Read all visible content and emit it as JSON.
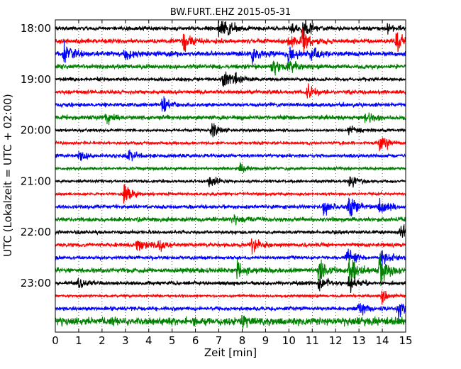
{
  "chart_data": {
    "type": "line",
    "title": "BW.FURT..EHZ 2015-05-31",
    "xlabel": "Zeit  [min]",
    "ylabel": "UTC (Lokalzeit = UTC + 02:00)",
    "xlim": [
      0,
      15
    ],
    "x_ticks": [
      "0",
      "1",
      "2",
      "3",
      "4",
      "5",
      "6",
      "7",
      "8",
      "9",
      "10",
      "11",
      "12",
      "13",
      "14",
      "15"
    ],
    "y_ticks": [
      "18:00",
      "19:00",
      "20:00",
      "21:00",
      "22:00",
      "23:00"
    ],
    "grid": "vertical dotted lines at each minute",
    "trace_colors": [
      "#000000",
      "#ff0000",
      "#0000ff",
      "#008000"
    ],
    "traces": [
      {
        "start": "18:00",
        "amp": 0.8,
        "events": [
          {
            "t": 7.0,
            "a": 1.2
          },
          {
            "t": 7.3,
            "a": 1.0
          },
          {
            "t": 10.1,
            "a": 0.7
          },
          {
            "t": 10.6,
            "a": 1.6
          },
          {
            "t": 14.2,
            "a": 0.6
          }
        ]
      },
      {
        "start": "18:15",
        "amp": 0.9,
        "events": [
          {
            "t": 5.5,
            "a": 1.4
          },
          {
            "t": 10.0,
            "a": 1.0
          },
          {
            "t": 10.6,
            "a": 1.6
          },
          {
            "t": 14.6,
            "a": 1.2
          }
        ]
      },
      {
        "start": "18:30",
        "amp": 1.0,
        "events": [
          {
            "t": 0.4,
            "a": 1.4
          },
          {
            "t": 3.0,
            "a": 0.9
          },
          {
            "t": 8.4,
            "a": 1.2
          },
          {
            "t": 10.0,
            "a": 1.0
          },
          {
            "t": 11.0,
            "a": 0.8
          }
        ]
      },
      {
        "start": "18:45",
        "amp": 0.9,
        "events": [
          {
            "t": 9.3,
            "a": 0.9
          },
          {
            "t": 10.0,
            "a": 1.4
          }
        ]
      },
      {
        "start": "19:00",
        "amp": 0.7,
        "events": [
          {
            "t": 7.2,
            "a": 1.2
          },
          {
            "t": 7.6,
            "a": 0.8
          }
        ]
      },
      {
        "start": "19:15",
        "amp": 0.8,
        "events": [
          {
            "t": 10.8,
            "a": 1.0
          }
        ]
      },
      {
        "start": "19:30",
        "amp": 0.8,
        "events": [
          {
            "t": 4.6,
            "a": 1.1
          }
        ]
      },
      {
        "start": "19:45",
        "amp": 0.9,
        "events": [
          {
            "t": 2.2,
            "a": 0.7
          },
          {
            "t": 13.3,
            "a": 0.8
          }
        ]
      },
      {
        "start": "20:00",
        "amp": 0.6,
        "events": [
          {
            "t": 6.7,
            "a": 1.0
          },
          {
            "t": 12.6,
            "a": 0.9
          }
        ]
      },
      {
        "start": "20:15",
        "amp": 0.6,
        "events": [
          {
            "t": 13.9,
            "a": 1.5
          }
        ]
      },
      {
        "start": "20:30",
        "amp": 0.7,
        "events": [
          {
            "t": 1.0,
            "a": 0.7
          },
          {
            "t": 3.1,
            "a": 1.1
          }
        ]
      },
      {
        "start": "20:45",
        "amp": 0.6,
        "events": [
          {
            "t": 7.9,
            "a": 0.7
          }
        ]
      },
      {
        "start": "21:00",
        "amp": 0.6,
        "events": [
          {
            "t": 6.6,
            "a": 1.0
          },
          {
            "t": 12.6,
            "a": 1.0
          }
        ]
      },
      {
        "start": "21:15",
        "amp": 0.6,
        "events": [
          {
            "t": 2.95,
            "a": 1.5
          }
        ]
      },
      {
        "start": "21:30",
        "amp": 0.8,
        "events": [
          {
            "t": 11.5,
            "a": 1.0
          },
          {
            "t": 12.6,
            "a": 2.2
          },
          {
            "t": 13.9,
            "a": 1.2
          }
        ]
      },
      {
        "start": "21:45",
        "amp": 0.9,
        "events": [
          {
            "t": 7.6,
            "a": 0.8
          }
        ]
      },
      {
        "start": "22:00",
        "amp": 0.7,
        "events": [
          {
            "t": 14.8,
            "a": 0.8
          }
        ]
      },
      {
        "start": "22:15",
        "amp": 0.8,
        "events": [
          {
            "t": 3.5,
            "a": 1.0
          },
          {
            "t": 4.4,
            "a": 0.8
          },
          {
            "t": 8.4,
            "a": 1.1
          }
        ]
      },
      {
        "start": "22:30",
        "amp": 0.7,
        "events": [
          {
            "t": 12.5,
            "a": 1.2
          },
          {
            "t": 14.0,
            "a": 1.4
          }
        ]
      },
      {
        "start": "22:45",
        "amp": 1.0,
        "events": [
          {
            "t": 7.8,
            "a": 0.9
          },
          {
            "t": 11.3,
            "a": 1.8
          },
          {
            "t": 12.6,
            "a": 2.2
          },
          {
            "t": 13.9,
            "a": 2.2
          }
        ]
      },
      {
        "start": "23:00",
        "amp": 0.8,
        "events": [
          {
            "t": 1.0,
            "a": 0.8
          },
          {
            "t": 11.3,
            "a": 1.0
          },
          {
            "t": 12.6,
            "a": 0.9
          }
        ]
      },
      {
        "start": "23:15",
        "amp": 0.5,
        "events": [
          {
            "t": 14.0,
            "a": 1.0
          }
        ]
      },
      {
        "start": "23:30",
        "amp": 0.8,
        "events": [
          {
            "t": 13.0,
            "a": 0.8
          },
          {
            "t": 14.7,
            "a": 1.3
          }
        ]
      },
      {
        "start": "23:45",
        "amp": 1.6,
        "events": [
          {
            "t": 8.0,
            "a": 0.5
          }
        ]
      }
    ]
  }
}
